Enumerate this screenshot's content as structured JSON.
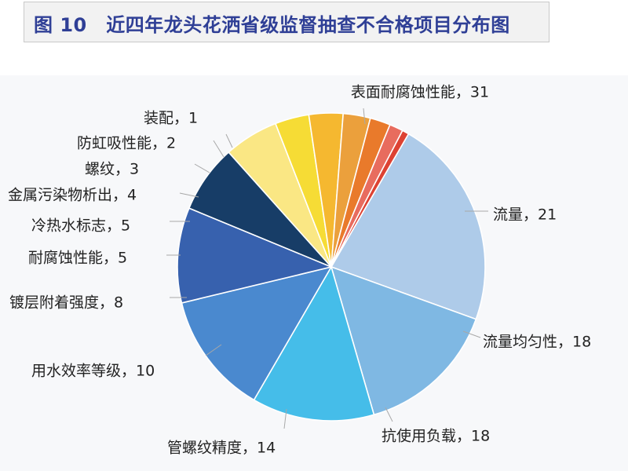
{
  "title": "图 10　近四年龙头花洒省级监督抽查不合格项目分布图",
  "chart_data": {
    "type": "pie",
    "title": "图 10　近四年龙头花洒省级监督抽查不合格项目分布图",
    "legend": "none",
    "slices": [
      {
        "label": "表面耐腐蚀性能",
        "value": 31,
        "color": "#aecbe9"
      },
      {
        "label": "流量",
        "value": 21,
        "color": "#7fb8e3"
      },
      {
        "label": "流量均匀性",
        "value": 18,
        "color": "#45bde9"
      },
      {
        "label": "抗使用负载",
        "value": 18,
        "color": "#4a89cf"
      },
      {
        "label": "管螺纹精度",
        "value": 14,
        "color": "#3761ae"
      },
      {
        "label": "用水效率等级",
        "value": 10,
        "color": "#173d67"
      },
      {
        "label": "镀层附着强度",
        "value": 8,
        "color": "#fae784"
      },
      {
        "label": "耐腐蚀性能",
        "value": 5,
        "color": "#f6dc35"
      },
      {
        "label": "冷热水标志",
        "value": 5,
        "color": "#f5b830"
      },
      {
        "label": "金属污染物析出",
        "value": 4,
        "color": "#eba03c"
      },
      {
        "label": "螺纹",
        "value": 3,
        "color": "#e97a2b"
      },
      {
        "label": "防虹吸性能",
        "value": 2,
        "color": "#e86c5e"
      },
      {
        "label": "装配",
        "value": 1,
        "color": "#dd4233"
      }
    ]
  }
}
